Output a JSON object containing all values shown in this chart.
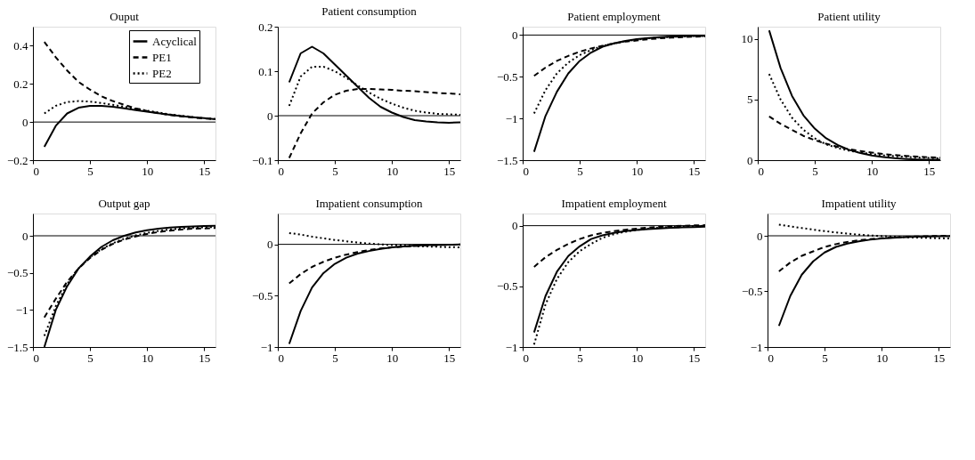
{
  "chart_data": [
    {
      "type": "line",
      "title": "Ouput",
      "x": [
        1,
        2,
        3,
        4,
        5,
        6,
        7,
        8,
        9,
        10,
        11,
        12,
        13,
        14,
        15,
        16
      ],
      "xlim": [
        0,
        16
      ],
      "xticks": [
        0,
        5,
        10,
        15
      ],
      "ylim": [
        -0.2,
        0.5
      ],
      "yticks": [
        {
          "value": -0.2,
          "label": "−0.2"
        },
        0,
        0.2,
        0.4
      ],
      "grid": false,
      "legend": "top right",
      "ref_lines": [
        {
          "axis": "y",
          "value": 0,
          "color": "#000000"
        }
      ],
      "series": [
        {
          "name": "Acyclical",
          "color": "#000000",
          "line_style": "solid",
          "values": [
            -0.13,
            -0.02,
            0.045,
            0.075,
            0.085,
            0.085,
            0.08,
            0.072,
            0.063,
            0.054,
            0.046,
            0.038,
            0.031,
            0.025,
            0.02,
            0.015
          ]
        },
        {
          "name": "PE1",
          "color": "#000000",
          "line_style": "dashed",
          "values": [
            0.42,
            0.34,
            0.27,
            0.21,
            0.17,
            0.135,
            0.11,
            0.09,
            0.072,
            0.058,
            0.046,
            0.037,
            0.03,
            0.024,
            0.019,
            0.015
          ]
        },
        {
          "name": "PE2",
          "color": "#000000",
          "line_style": "dotted",
          "values": [
            0.045,
            0.085,
            0.105,
            0.11,
            0.107,
            0.1,
            0.09,
            0.08,
            0.07,
            0.06,
            0.05,
            0.04,
            0.033,
            0.026,
            0.02,
            0.016
          ]
        }
      ]
    },
    {
      "type": "line",
      "title": "Patient consumption",
      "x": [
        1,
        2,
        3,
        4,
        5,
        6,
        7,
        8,
        9,
        10,
        11,
        12,
        13,
        14,
        15,
        16
      ],
      "xlim": [
        0,
        16
      ],
      "xticks": [
        0,
        5,
        10,
        15
      ],
      "ylim": [
        -0.1,
        0.2
      ],
      "yticks": [
        {
          "value": -0.1,
          "label": "−0.1"
        },
        0,
        0.1,
        0.2
      ],
      "grid": false,
      "ref_lines": [
        {
          "axis": "y",
          "value": 0,
          "color": "#000000"
        }
      ],
      "series": [
        {
          "color": "#000000",
          "line_style": "solid",
          "values": [
            0.075,
            0.14,
            0.155,
            0.14,
            0.115,
            0.09,
            0.065,
            0.04,
            0.02,
            0.007,
            -0.003,
            -0.01,
            -0.013,
            -0.015,
            -0.016,
            -0.015
          ]
        },
        {
          "color": "#000000",
          "line_style": "dashed",
          "values": [
            -0.095,
            -0.04,
            0.005,
            0.03,
            0.047,
            0.056,
            0.06,
            0.06,
            0.059,
            0.058,
            0.056,
            0.055,
            0.053,
            0.051,
            0.05,
            0.048
          ]
        },
        {
          "color": "#000000",
          "line_style": "dotted",
          "values": [
            0.022,
            0.088,
            0.11,
            0.11,
            0.1,
            0.085,
            0.068,
            0.052,
            0.038,
            0.027,
            0.018,
            0.011,
            0.007,
            0.004,
            0.003,
            0.002
          ]
        }
      ]
    },
    {
      "type": "line",
      "title": "Patient employment",
      "x": [
        1,
        2,
        3,
        4,
        5,
        6,
        7,
        8,
        9,
        10,
        11,
        12,
        13,
        14,
        15,
        16
      ],
      "xlim": [
        0,
        16
      ],
      "xticks": [
        0,
        5,
        10,
        15
      ],
      "ylim": [
        -1.5,
        0.1
      ],
      "yticks": [
        {
          "value": -1.5,
          "label": "−1.5"
        },
        {
          "value": -1,
          "label": "−1"
        },
        {
          "value": -0.5,
          "label": "−0.5"
        },
        0
      ],
      "grid": false,
      "ref_lines": [
        {
          "axis": "y",
          "value": 0,
          "color": "#000000"
        }
      ],
      "series": [
        {
          "color": "#000000",
          "line_style": "solid",
          "values": [
            -1.4,
            -0.97,
            -0.68,
            -0.46,
            -0.31,
            -0.21,
            -0.14,
            -0.1,
            -0.07,
            -0.05,
            -0.035,
            -0.025,
            -0.018,
            -0.013,
            -0.01,
            -0.008
          ]
        },
        {
          "color": "#000000",
          "line_style": "dashed",
          "values": [
            -0.49,
            -0.39,
            -0.31,
            -0.25,
            -0.2,
            -0.16,
            -0.13,
            -0.1,
            -0.08,
            -0.065,
            -0.05,
            -0.04,
            -0.032,
            -0.026,
            -0.02,
            -0.016
          ]
        },
        {
          "color": "#000000",
          "line_style": "dotted",
          "values": [
            -0.94,
            -0.66,
            -0.46,
            -0.33,
            -0.24,
            -0.18,
            -0.13,
            -0.1,
            -0.075,
            -0.055,
            -0.04,
            -0.03,
            -0.022,
            -0.017,
            -0.013,
            -0.01
          ]
        }
      ]
    },
    {
      "type": "line",
      "title": "Patient utility",
      "x": [
        1,
        2,
        3,
        4,
        5,
        6,
        7,
        8,
        9,
        10,
        11,
        12,
        13,
        14,
        15,
        16
      ],
      "xlim": [
        0,
        16
      ],
      "xticks": [
        0,
        5,
        10,
        15
      ],
      "ylim": [
        0,
        11
      ],
      "yticks": [
        0,
        5,
        10
      ],
      "grid": false,
      "series": [
        {
          "color": "#000000",
          "line_style": "solid",
          "values": [
            10.7,
            7.6,
            5.3,
            3.7,
            2.6,
            1.8,
            1.25,
            0.85,
            0.58,
            0.38,
            0.25,
            0.16,
            0.1,
            0.06,
            0.04,
            0.03
          ]
        },
        {
          "color": "#000000",
          "line_style": "dashed",
          "values": [
            3.6,
            3.0,
            2.5,
            2.0,
            1.65,
            1.35,
            1.1,
            0.9,
            0.75,
            0.62,
            0.5,
            0.42,
            0.35,
            0.29,
            0.24,
            0.2
          ]
        },
        {
          "color": "#000000",
          "line_style": "dotted",
          "values": [
            7.1,
            5.0,
            3.5,
            2.5,
            1.8,
            1.3,
            1.0,
            0.78,
            0.62,
            0.5,
            0.4,
            0.33,
            0.27,
            0.22,
            0.18,
            0.15
          ]
        }
      ]
    },
    {
      "type": "line",
      "title": "Output gap",
      "x": [
        1,
        2,
        3,
        4,
        5,
        6,
        7,
        8,
        9,
        10,
        11,
        12,
        13,
        14,
        15,
        16
      ],
      "xlim": [
        0,
        16
      ],
      "xticks": [
        0,
        5,
        10,
        15
      ],
      "ylim": [
        -1.5,
        0.3
      ],
      "yticks": [
        {
          "value": -1.5,
          "label": "−1.5"
        },
        {
          "value": -1,
          "label": "−1"
        },
        {
          "value": -0.5,
          "label": "−0.5"
        },
        0
      ],
      "grid": false,
      "ref_lines": [
        {
          "axis": "y",
          "value": 0,
          "color": "#000000"
        }
      ],
      "series": [
        {
          "color": "#000000",
          "line_style": "solid",
          "values": [
            -1.5,
            -1.0,
            -0.68,
            -0.44,
            -0.28,
            -0.15,
            -0.06,
            0.0,
            0.045,
            0.075,
            0.095,
            0.11,
            0.12,
            0.127,
            0.132,
            0.135
          ]
        },
        {
          "color": "#000000",
          "line_style": "dashed",
          "values": [
            -1.1,
            -0.85,
            -0.62,
            -0.44,
            -0.3,
            -0.19,
            -0.11,
            -0.05,
            -0.01,
            0.025,
            0.05,
            0.07,
            0.085,
            0.095,
            0.1,
            0.105
          ]
        },
        {
          "color": "#000000",
          "line_style": "dotted",
          "values": [
            -1.35,
            -0.95,
            -0.65,
            -0.44,
            -0.29,
            -0.18,
            -0.1,
            -0.04,
            0.005,
            0.04,
            0.065,
            0.085,
            0.1,
            0.11,
            0.115,
            0.12
          ]
        }
      ]
    },
    {
      "type": "line",
      "title": "Impatient consumption",
      "x": [
        1,
        2,
        3,
        4,
        5,
        6,
        7,
        8,
        9,
        10,
        11,
        12,
        13,
        14,
        15,
        16
      ],
      "xlim": [
        0,
        16
      ],
      "xticks": [
        0,
        5,
        10,
        15
      ],
      "ylim": [
        -1,
        0.3
      ],
      "yticks": [
        {
          "value": -1,
          "label": "−1"
        },
        {
          "value": -0.5,
          "label": "−0.5"
        },
        0
      ],
      "grid": false,
      "ref_lines": [
        {
          "axis": "y",
          "value": 0,
          "color": "#000000"
        }
      ],
      "series": [
        {
          "color": "#000000",
          "line_style": "solid",
          "values": [
            -0.97,
            -0.65,
            -0.42,
            -0.28,
            -0.19,
            -0.13,
            -0.09,
            -0.065,
            -0.045,
            -0.03,
            -0.02,
            -0.013,
            -0.008,
            -0.005,
            -0.003,
            -0.002
          ]
        },
        {
          "color": "#000000",
          "line_style": "dashed",
          "values": [
            -0.38,
            -0.29,
            -0.22,
            -0.17,
            -0.13,
            -0.1,
            -0.075,
            -0.055,
            -0.04,
            -0.03,
            -0.022,
            -0.016,
            -0.01,
            -0.007,
            -0.004,
            -0.002
          ]
        },
        {
          "color": "#000000",
          "line_style": "dotted",
          "values": [
            0.11,
            0.095,
            0.075,
            0.058,
            0.043,
            0.03,
            0.018,
            0.008,
            0.0,
            -0.007,
            -0.012,
            -0.017,
            -0.021,
            -0.024,
            -0.027,
            -0.029
          ]
        }
      ]
    },
    {
      "type": "line",
      "title": "Impatient employment",
      "x": [
        1,
        2,
        3,
        4,
        5,
        6,
        7,
        8,
        9,
        10,
        11,
        12,
        13,
        14,
        15,
        16
      ],
      "xlim": [
        0,
        16
      ],
      "xticks": [
        0,
        5,
        10,
        15
      ],
      "ylim": [
        -1,
        0.1
      ],
      "yticks": [
        {
          "value": -1,
          "label": "−1"
        },
        {
          "value": -0.5,
          "label": "−0.5"
        },
        0
      ],
      "grid": false,
      "ref_lines": [
        {
          "axis": "y",
          "value": 0,
          "color": "#000000"
        }
      ],
      "series": [
        {
          "color": "#000000",
          "line_style": "solid",
          "values": [
            -0.88,
            -0.58,
            -0.38,
            -0.25,
            -0.17,
            -0.11,
            -0.08,
            -0.06,
            -0.045,
            -0.035,
            -0.028,
            -0.022,
            -0.018,
            -0.014,
            -0.011,
            -0.009
          ]
        },
        {
          "color": "#000000",
          "line_style": "dashed",
          "values": [
            -0.34,
            -0.26,
            -0.2,
            -0.15,
            -0.11,
            -0.08,
            -0.06,
            -0.045,
            -0.033,
            -0.024,
            -0.016,
            -0.01,
            -0.005,
            -0.001,
            0.002,
            0.004
          ]
        },
        {
          "color": "#000000",
          "line_style": "dotted",
          "values": [
            -0.98,
            -0.65,
            -0.44,
            -0.3,
            -0.21,
            -0.15,
            -0.1,
            -0.07,
            -0.05,
            -0.035,
            -0.024,
            -0.016,
            -0.01,
            -0.006,
            -0.003,
            -0.001
          ]
        }
      ]
    },
    {
      "type": "line",
      "title": "Impatient utility",
      "x": [
        1,
        2,
        3,
        4,
        5,
        6,
        7,
        8,
        9,
        10,
        11,
        12,
        13,
        14,
        15,
        16
      ],
      "xlim": [
        0,
        16
      ],
      "xticks": [
        0,
        5,
        10,
        15
      ],
      "ylim": [
        -1,
        0.2
      ],
      "yticks": [
        {
          "value": -1,
          "label": "−1"
        },
        {
          "value": -0.5,
          "label": "−0.5"
        },
        0
      ],
      "grid": false,
      "ref_lines": [
        {
          "axis": "y",
          "value": 0,
          "color": "#000000"
        }
      ],
      "series": [
        {
          "color": "#000000",
          "line_style": "solid",
          "values": [
            -0.81,
            -0.54,
            -0.35,
            -0.23,
            -0.15,
            -0.1,
            -0.07,
            -0.05,
            -0.035,
            -0.025,
            -0.018,
            -0.013,
            -0.009,
            -0.007,
            -0.005,
            -0.004
          ]
        },
        {
          "color": "#000000",
          "line_style": "dashed",
          "values": [
            -0.32,
            -0.24,
            -0.18,
            -0.14,
            -0.1,
            -0.075,
            -0.055,
            -0.04,
            -0.03,
            -0.022,
            -0.015,
            -0.01,
            -0.006,
            -0.003,
            -0.001,
            0.0
          ]
        },
        {
          "color": "#000000",
          "line_style": "dotted",
          "values": [
            0.1,
            0.085,
            0.07,
            0.055,
            0.042,
            0.03,
            0.02,
            0.01,
            0.003,
            -0.003,
            -0.008,
            -0.012,
            -0.016,
            -0.019,
            -0.022,
            -0.024
          ]
        }
      ]
    }
  ]
}
